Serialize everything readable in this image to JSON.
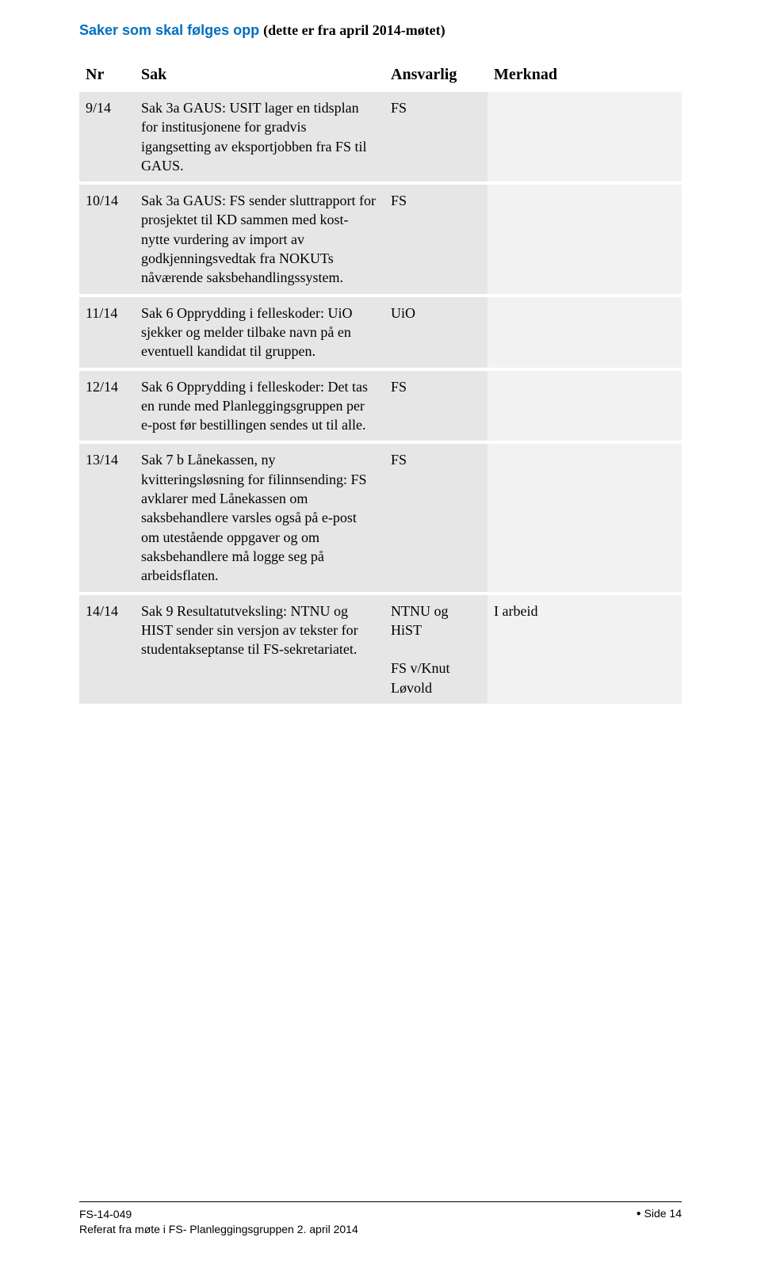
{
  "title": {
    "blue": "Saker som skal følges opp ",
    "black": "(dette er fra april 2014-møtet)"
  },
  "headers": {
    "nr": "Nr",
    "sak": "Sak",
    "ansvarlig": "Ansvarlig",
    "merknad": "Merknad"
  },
  "rows": [
    {
      "nr": "9/14",
      "sak": "Sak 3a GAUS: USIT lager en tidsplan for institusjonene for gradvis igangsetting av eksportjobben fra FS til GAUS.",
      "ansvarlig": "FS",
      "merknad": ""
    },
    {
      "nr": "10/14",
      "sak": "Sak 3a GAUS: FS sender sluttrapport for prosjektet til KD sammen med kost-nytte vurdering av import av godkjenningsvedtak fra NOKUTs nåværende saksbehandlingssystem.",
      "ansvarlig": "FS",
      "merknad": ""
    },
    {
      "nr": "11/14",
      "sak": "Sak 6 Opprydding i felleskoder: UiO sjekker og melder tilbake navn på en eventuell kandidat til gruppen.",
      "ansvarlig": "UiO",
      "merknad": ""
    },
    {
      "nr": "12/14",
      "sak": "Sak 6 Opprydding i felleskoder: Det tas en runde med Planleggingsgruppen per e-post før bestillingen sendes ut til alle.",
      "ansvarlig": "FS",
      "merknad": ""
    },
    {
      "nr": "13/14",
      "sak": "Sak 7 b Lånekassen, ny kvitteringsløsning for filinnsending: FS avklarer med Lånekassen om saksbehandlere varsles også på e-post om utestående oppgaver og om saksbehandlere må logge seg på arbeidsflaten.",
      "ansvarlig": "FS",
      "merknad": ""
    },
    {
      "nr": "14/14",
      "sak": "Sak 9 Resultatutveksling:  NTNU og HIST sender sin versjon av tekster for studentakseptanse til FS-sekretariatet.",
      "ansvarlig": "NTNU og HiST\n\nFS v/Knut Løvold",
      "merknad": "I arbeid"
    }
  ],
  "footer": {
    "code": "FS-14-049",
    "ref": "Referat fra møte i FS- Planleggingsgruppen 2. april 2014",
    "page": "Side 14"
  },
  "colors": {
    "title_blue": "#0070c0",
    "cell_bg_main": "#e6e6e6",
    "cell_bg_merk": "#f2f2f2",
    "page_bg": "#ffffff"
  }
}
